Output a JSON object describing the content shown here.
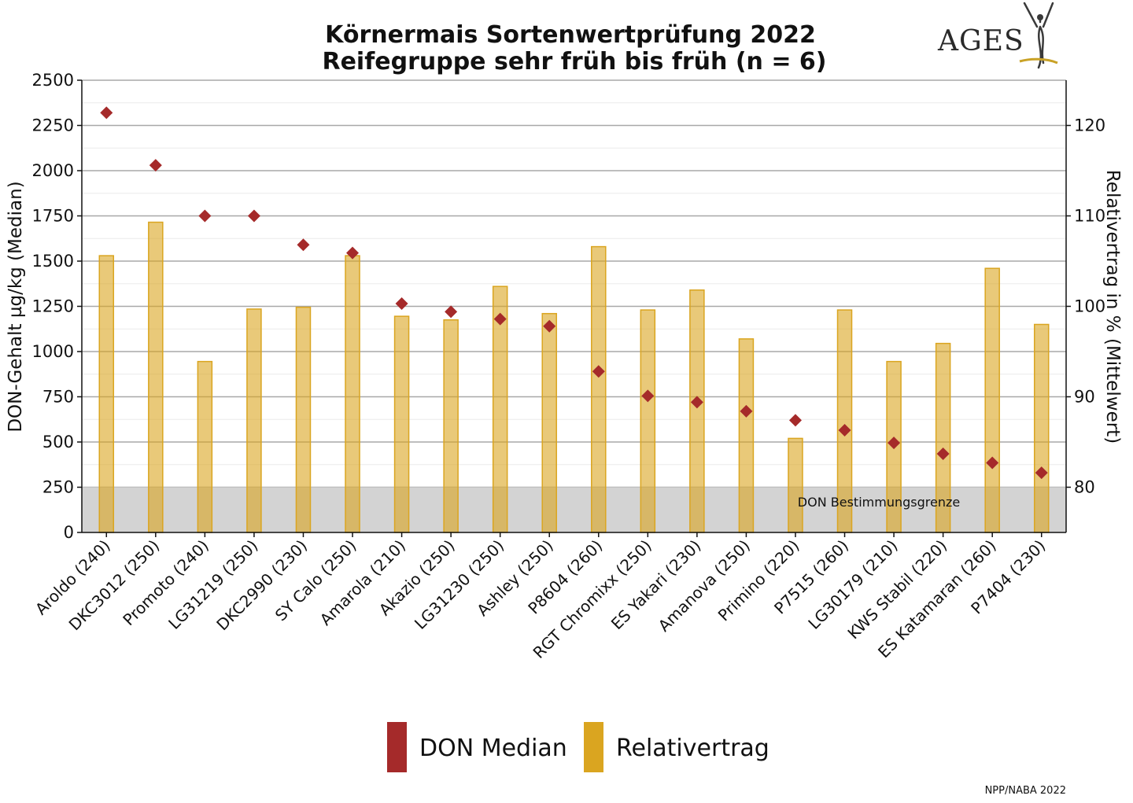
{
  "chart_data": {
    "type": "bar",
    "title": "Körnermais Sortenwertprüfung 2022",
    "subtitle": "Reifegruppe sehr früh bis früh (n = 6)",
    "ylabel_left": "DON-Gehalt µg/kg (Median)",
    "ylabel_right": "Relativertrag in % (Mittelwert)",
    "ylim_left": [
      0,
      2500
    ],
    "ylim_right": [
      75,
      125
    ],
    "yticks_left": [
      "0",
      "250",
      "500",
      "750",
      "1000",
      "1250",
      "1500",
      "1750",
      "2000",
      "2250",
      "2500"
    ],
    "yticks_right": [
      "80",
      "90",
      "100",
      "110",
      "120"
    ],
    "grid": true,
    "legend_position": "bottom",
    "categories": [
      "Aroldo (240)",
      "DKC3012 (250)",
      "Promoto (240)",
      "LG31219 (250)",
      "DKC2990 (230)",
      "SY Calo (250)",
      "Amarola (210)",
      "Akazio (250)",
      "LG31230 (250)",
      "Ashley (250)",
      "P8604 (260)",
      "RGT Chromixx (250)",
      "ES Yakari (230)",
      "Amanova (250)",
      "Primino (220)",
      "P7515 (260)",
      "LG30179 (210)",
      "KWS Stabil (220)",
      "ES Katamaran (260)",
      "P7404 (230)"
    ],
    "series": [
      {
        "name": "DON Median",
        "type": "scatter",
        "axis": "left",
        "color": "#a52a2a",
        "values": [
          2320,
          2030,
          1750,
          1750,
          1590,
          1545,
          1265,
          1220,
          1180,
          1140,
          890,
          755,
          720,
          670,
          620,
          565,
          495,
          435,
          385,
          330
        ]
      },
      {
        "name": "Relativertrag",
        "type": "bar",
        "axis": "right",
        "color": "#daa520",
        "values": [
          105.6,
          109.3,
          93.9,
          99.7,
          99.9,
          105.6,
          98.9,
          98.5,
          102.2,
          99.2,
          106.6,
          99.6,
          101.8,
          96.4,
          85.4,
          99.6,
          93.9,
          95.9,
          104.2,
          98.0
        ]
      }
    ],
    "annotation": {
      "label": "DON Bestimmungsgrenze",
      "value": 250
    }
  },
  "legend": {
    "items": [
      {
        "label": "DON Median",
        "color": "#a52a2a"
      },
      {
        "label": "Relativertrag",
        "color": "#daa520"
      }
    ]
  },
  "logo": {
    "text": "AGES"
  },
  "footer": {
    "text": "NPP/NABA 2022"
  }
}
